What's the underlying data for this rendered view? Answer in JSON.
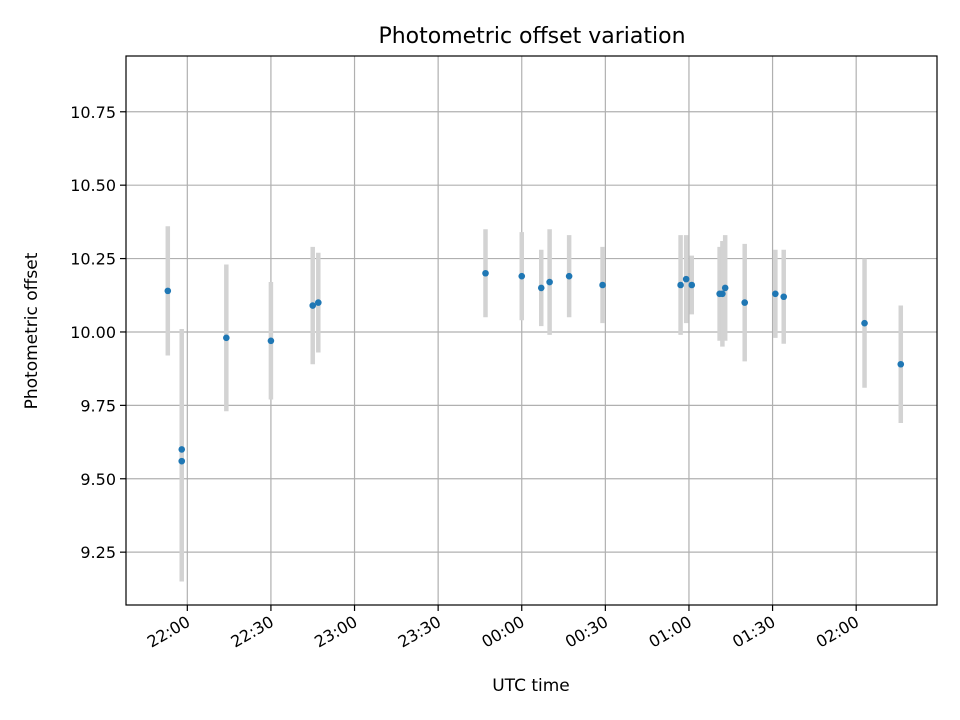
{
  "chart_data": {
    "type": "scatter",
    "title": "Photometric offset variation",
    "xlabel": "UTC time",
    "ylabel": "Photometric offset",
    "x_tick_labels": [
      "22:00",
      "22:30",
      "23:00",
      "23:30",
      "00:00",
      "00:30",
      "01:00",
      "01:30",
      "02:00"
    ],
    "y_tick_labels": [
      "9.25",
      "9.50",
      "9.75",
      "10.00",
      "10.25",
      "10.50",
      "10.75"
    ],
    "xlim": [
      "21:38",
      "02:29"
    ],
    "ylim": [
      9.07,
      10.94
    ],
    "grid": true,
    "colors": {
      "point": "#1f77b4",
      "errorbar": "#d3d3d3"
    },
    "points": [
      {
        "x": "21:53",
        "y": 10.14,
        "err": 0.22
      },
      {
        "x": "21:58",
        "y": 9.6,
        "err": 0.41
      },
      {
        "x": "21:58",
        "y": 9.56,
        "err": 0.41
      },
      {
        "x": "22:14",
        "y": 9.98,
        "err": 0.25
      },
      {
        "x": "22:30",
        "y": 9.97,
        "err": 0.2
      },
      {
        "x": "22:45",
        "y": 10.09,
        "err": 0.2
      },
      {
        "x": "22:47",
        "y": 10.1,
        "err": 0.17
      },
      {
        "x": "23:47",
        "y": 10.2,
        "err": 0.15
      },
      {
        "x": "00:00",
        "y": 10.19,
        "err": 0.15
      },
      {
        "x": "00:07",
        "y": 10.15,
        "err": 0.13
      },
      {
        "x": "00:10",
        "y": 10.17,
        "err": 0.18
      },
      {
        "x": "00:17",
        "y": 10.19,
        "err": 0.14
      },
      {
        "x": "00:29",
        "y": 10.16,
        "err": 0.13
      },
      {
        "x": "00:57",
        "y": 10.16,
        "err": 0.17
      },
      {
        "x": "00:59",
        "y": 10.18,
        "err": 0.15
      },
      {
        "x": "01:01",
        "y": 10.16,
        "err": 0.1
      },
      {
        "x": "01:11",
        "y": 10.13,
        "err": 0.16
      },
      {
        "x": "01:12",
        "y": 10.13,
        "err": 0.18
      },
      {
        "x": "01:13",
        "y": 10.15,
        "err": 0.18
      },
      {
        "x": "01:20",
        "y": 10.1,
        "err": 0.2
      },
      {
        "x": "01:31",
        "y": 10.13,
        "err": 0.15
      },
      {
        "x": "01:34",
        "y": 10.12,
        "err": 0.16
      },
      {
        "x": "02:03",
        "y": 10.03,
        "err": 0.22
      },
      {
        "x": "02:16",
        "y": 9.89,
        "err": 0.2
      }
    ]
  }
}
